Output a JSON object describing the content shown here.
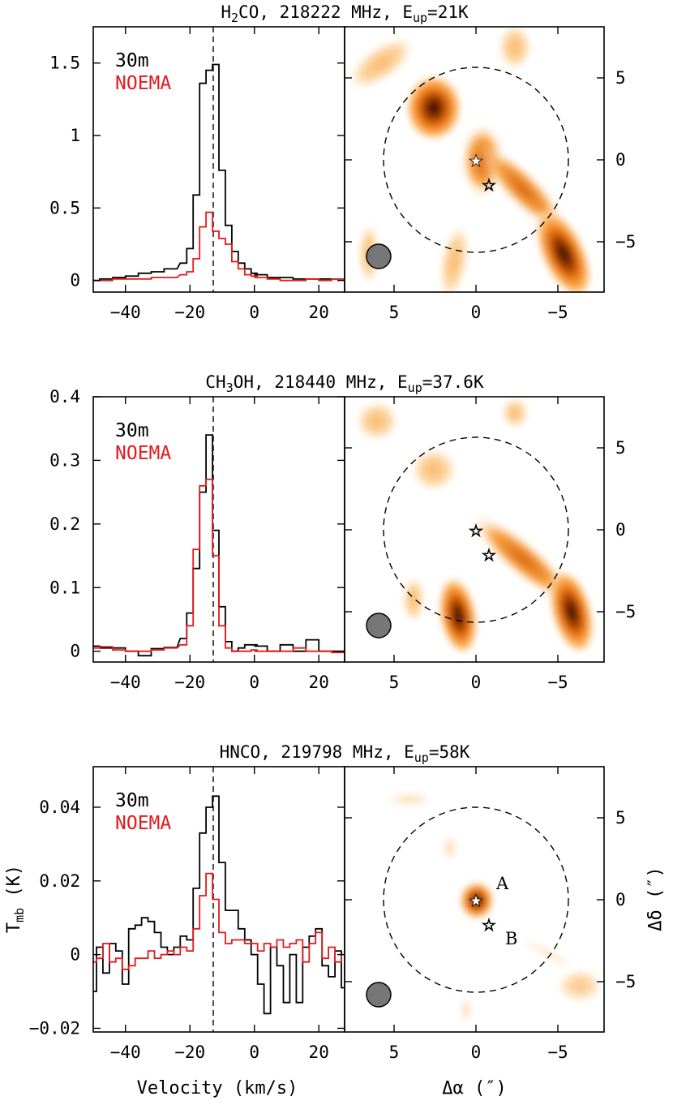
{
  "chart_data": [
    {
      "type": "line",
      "title": "H₂CO, 218222 MHz, E_up=21K",
      "title_parts": {
        "before_sub": "H",
        "sub": "2",
        "after_sub": "CO, 218222 MHz, E",
        "sub2": "up",
        "after_sub2": "=21K"
      },
      "xlim": [
        -50,
        28
      ],
      "ylim": [
        -0.08,
        1.75
      ],
      "xticks": [
        -40,
        -20,
        0,
        20
      ],
      "xtick_labels": [
        "−40",
        "−20",
        "0",
        "20"
      ],
      "yticks": [
        0,
        0.5,
        1,
        1.5
      ],
      "ytick_labels": [
        "0",
        "0.5",
        "1",
        "1.5"
      ],
      "v_ref": -11,
      "series": [
        {
          "name": "30m",
          "color": "#000000",
          "x": [
            -54,
            -50,
            -46,
            -42,
            -38,
            -34,
            -30,
            -26,
            -22,
            -20,
            -18,
            -16,
            -14,
            -12,
            -10,
            -8,
            -6,
            -4,
            -2,
            0,
            2,
            6,
            10,
            14,
            18,
            22,
            26,
            30
          ],
          "values": [
            0.0,
            0.0,
            0.01,
            0.02,
            0.03,
            0.05,
            0.06,
            0.08,
            0.12,
            0.22,
            0.59,
            1.36,
            1.45,
            1.49,
            0.76,
            0.38,
            0.2,
            0.12,
            0.08,
            0.05,
            0.04,
            0.02,
            0.02,
            0.01,
            0.01,
            0.01,
            0.01,
            0.01
          ]
        },
        {
          "name": "NOEMA",
          "color": "#e41a1c",
          "x": [
            -54,
            -50,
            -46,
            -42,
            -38,
            -34,
            -30,
            -26,
            -22,
            -20,
            -18,
            -16,
            -14,
            -12,
            -10,
            -8,
            -6,
            -4,
            -2,
            0,
            2,
            6,
            10,
            14,
            18,
            22,
            26,
            30
          ],
          "values": [
            0.0,
            0.0,
            0.0,
            0.01,
            0.01,
            0.01,
            0.02,
            0.02,
            0.04,
            0.06,
            0.15,
            0.37,
            0.47,
            0.34,
            0.29,
            0.25,
            0.13,
            0.08,
            0.04,
            0.03,
            0.02,
            0.01,
            0.0,
            0.0,
            0.01,
            0.0,
            0.01,
            0.01
          ]
        }
      ],
      "legend": [
        "30m",
        "NOEMA"
      ],
      "map": {
        "xticks": [
          5,
          0,
          -5
        ],
        "xtick_labels": [
          "5",
          "0",
          "−5"
        ],
        "yticks": [
          5,
          0,
          -5
        ],
        "ytick_labels": [
          "5",
          "0",
          "−5"
        ],
        "colormap": "white-orange-black",
        "sources": [
          {
            "x": 0,
            "y": 0
          },
          {
            "x": -0.8,
            "y": -1.5
          }
        ],
        "circle_radius": 5.7,
        "beam": {
          "x": 5.9,
          "y": -6.1
        }
      }
    },
    {
      "type": "line",
      "title": "CH₃OH, 218440 MHz, E_up=37.6K",
      "title_parts": {
        "before_sub": "CH",
        "sub": "3",
        "after_sub": "OH, 218440 MHz, E",
        "sub2": "up",
        "after_sub2": "=37.6K"
      },
      "xlim": [
        -50,
        28
      ],
      "ylim": [
        -0.017,
        0.4
      ],
      "xticks": [
        -40,
        -20,
        0,
        20
      ],
      "xtick_labels": [
        "−40",
        "−20",
        "0",
        "20"
      ],
      "yticks": [
        0,
        0.1,
        0.2,
        0.3,
        0.4
      ],
      "ytick_labels": [
        "0",
        "0.1",
        "0.2",
        "0.3",
        "0.4"
      ],
      "v_ref": -11,
      "series": [
        {
          "name": "30m",
          "color": "#000000",
          "x": [
            -54,
            -50,
            -46,
            -42,
            -38,
            -34,
            -30,
            -26,
            -22,
            -20,
            -18,
            -16,
            -14,
            -12,
            -10,
            -8,
            -6,
            -4,
            -2,
            0,
            2,
            6,
            10,
            14,
            18,
            22,
            26,
            30
          ],
          "values": [
            0.005,
            0.008,
            0.005,
            0.005,
            0.0,
            -0.007,
            0.004,
            0.006,
            0.02,
            0.06,
            0.13,
            0.25,
            0.34,
            0.19,
            0.07,
            0.015,
            0.0,
            0.005,
            0.01,
            0.01,
            0.008,
            0.0,
            0.01,
            0.0,
            0.018,
            0.0,
            0.0,
            0.0
          ]
        },
        {
          "name": "NOEMA",
          "color": "#e41a1c",
          "x": [
            -54,
            -50,
            -46,
            -42,
            -38,
            -34,
            -30,
            -26,
            -22,
            -20,
            -18,
            -16,
            -14,
            -12,
            -10,
            -8,
            -6,
            -4,
            -2,
            0,
            2,
            6,
            10,
            14,
            18,
            22,
            26,
            30
          ],
          "values": [
            0.005,
            0.005,
            0.007,
            0.002,
            0.0,
            0.0,
            0.002,
            0.005,
            0.01,
            0.04,
            0.16,
            0.26,
            0.27,
            0.15,
            0.04,
            0.005,
            0.0,
            0.0,
            0.0,
            0.002,
            0.0,
            0.0,
            0.0,
            0.005,
            0.0,
            0.0,
            -0.002,
            0.0
          ]
        }
      ],
      "legend": [
        "30m",
        "NOEMA"
      ],
      "map": {
        "xticks": [
          5,
          0,
          -5
        ],
        "xtick_labels": [
          "5",
          "0",
          "−5"
        ],
        "yticks": [
          5,
          0,
          -5
        ],
        "ytick_labels": [
          "5",
          "0",
          "−5"
        ],
        "colormap": "white-orange-black",
        "sources": [
          {
            "x": 0,
            "y": 0
          },
          {
            "x": -0.8,
            "y": -1.5
          }
        ],
        "circle_radius": 5.7,
        "beam": {
          "x": 5.9,
          "y": -6.1
        }
      }
    },
    {
      "type": "line",
      "title": "HNCO, 219798 MHz, E_up=58K",
      "title_parts": {
        "before_sub": "HNCO, 219798 MHz, E",
        "sub": "up",
        "after_sub": "=58K",
        "sub2": "",
        "after_sub2": ""
      },
      "xlim": [
        -50,
        28
      ],
      "ylim": [
        -0.021,
        0.051
      ],
      "xticks": [
        -40,
        -20,
        0,
        20
      ],
      "xtick_labels": [
        "−40",
        "−20",
        "0",
        "20"
      ],
      "yticks": [
        -0.02,
        0,
        0.02,
        0.04
      ],
      "ytick_labels": [
        "−0.02",
        "0",
        "0.02",
        "0.04"
      ],
      "v_ref": -11,
      "xlabel": "Velocity (km/s)",
      "ylabel_main": "T",
      "ylabel_sub": "mb",
      "ylabel_unit": " (K)",
      "series": [
        {
          "name": "30m",
          "color": "#000000",
          "x": [
            -50,
            -48,
            -46,
            -44,
            -42,
            -40,
            -38,
            -36,
            -34,
            -32,
            -30,
            -28,
            -26,
            -24,
            -22,
            -20,
            -18,
            -16,
            -14,
            -12,
            -10,
            -8,
            -6,
            -4,
            -2,
            0,
            2,
            4,
            6,
            8,
            10,
            12,
            14,
            16,
            18,
            20,
            22,
            24,
            26,
            28
          ],
          "values": [
            -0.01,
            0.002,
            -0.005,
            0.003,
            0.001,
            -0.008,
            0.007,
            0.008,
            0.01,
            0.009,
            0.006,
            0.002,
            0.0,
            0.002,
            0.005,
            0.004,
            0.018,
            0.033,
            0.04,
            0.043,
            0.025,
            0.012,
            0.012,
            0.007,
            0.004,
            0.0,
            -0.008,
            -0.016,
            0.002,
            -0.003,
            -0.013,
            0.0,
            -0.013,
            0.002,
            0.005,
            0.007,
            -0.003,
            -0.006,
            0.001,
            -0.009
          ]
        },
        {
          "name": "NOEMA",
          "color": "#e41a1c",
          "x": [
            -50,
            -48,
            -46,
            -44,
            -42,
            -40,
            -38,
            -36,
            -34,
            -32,
            -30,
            -28,
            -26,
            -24,
            -22,
            -20,
            -18,
            -16,
            -14,
            -12,
            -10,
            -8,
            -6,
            -4,
            -2,
            0,
            2,
            4,
            6,
            8,
            10,
            12,
            14,
            16,
            18,
            20,
            22,
            24,
            26,
            28
          ],
          "values": [
            -0.002,
            -0.001,
            0.003,
            -0.002,
            -0.001,
            -0.004,
            -0.003,
            -0.001,
            -0.001,
            0.001,
            -0.001,
            0.0,
            0.001,
            0.0,
            0.002,
            0.001,
            0.007,
            0.016,
            0.022,
            0.015,
            0.006,
            0.003,
            0.004,
            0.004,
            0.003,
            0.003,
            0.001,
            0.003,
            0.002,
            0.004,
            0.002,
            0.003,
            0.004,
            -0.002,
            0.003,
            0.006,
            -0.001,
            0.002,
            -0.002,
            0.0
          ]
        }
      ],
      "legend": [
        "30m",
        "NOEMA"
      ],
      "map": {
        "xticks": [
          5,
          0,
          -5
        ],
        "xtick_labels": [
          "5",
          "0",
          "−5"
        ],
        "yticks": [
          5,
          0,
          -5
        ],
        "ytick_labels": [
          "5",
          "0",
          "−5"
        ],
        "colormap": "white-orange-black",
        "sources": [
          {
            "x": 0,
            "y": 0,
            "label": "A"
          },
          {
            "x": -0.8,
            "y": -1.5,
            "label": "B"
          }
        ],
        "circle_radius": 5.7,
        "beam": {
          "x": 5.9,
          "y": -6.1
        },
        "xlabel_main": "Δα",
        "xlabel_unit": " (″)",
        "ylabel_main": "Δδ",
        "ylabel_unit": " (″)"
      }
    }
  ],
  "colors": {
    "black_series": "#000000",
    "red_series": "#e41a1c"
  }
}
